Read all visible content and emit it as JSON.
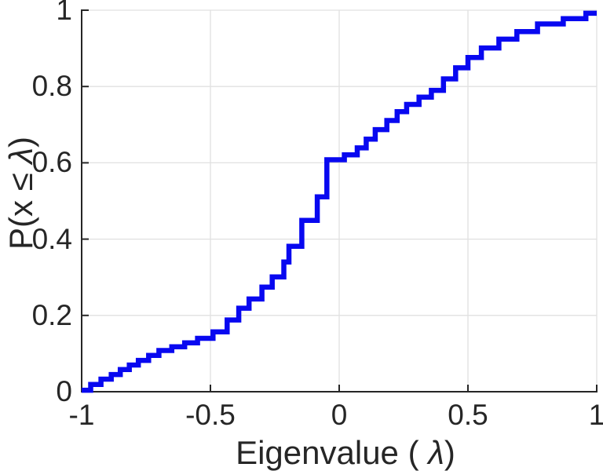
{
  "figure": {
    "background": "#ffffff",
    "text_color": "#262626"
  },
  "chart_data": {
    "type": "line",
    "subtype": "stairs-empirical-cdf",
    "title": "",
    "xlabel": "Eigenvalue ( λ)",
    "ylabel": "P(x ≤ λ)",
    "xlabel_parts": {
      "prefix": "Eigenvalue (",
      "lambda": " λ",
      "suffix": ")"
    },
    "ylabel_parts": {
      "prefix": "P(x ",
      "leq": "≤",
      "lambda": " λ",
      "suffix": ")"
    },
    "xlim": [
      -1,
      1
    ],
    "ylim": [
      0,
      1
    ],
    "grid": true,
    "legend_position": "none",
    "xticks": {
      "values": [
        -1,
        -0.5,
        0,
        0.5,
        1
      ],
      "labels": [
        "-1",
        "-0.5",
        "0",
        "0.5",
        "1"
      ]
    },
    "yticks": {
      "values": [
        0,
        0.2,
        0.4,
        0.6,
        0.8,
        1
      ],
      "labels": [
        "0",
        "0.2",
        "0.4",
        "0.6",
        "0.8",
        "1"
      ]
    },
    "series": [
      {
        "name": "eigenvalue-cdf-staircase",
        "color": "#0808f0",
        "line_width": 6.5,
        "step_start": [
          -1.0,
          0.004
        ],
        "steps": [
          [
            -0.965,
            0.019
          ],
          [
            -0.925,
            0.033
          ],
          [
            -0.885,
            0.045
          ],
          [
            -0.85,
            0.058
          ],
          [
            -0.815,
            0.07
          ],
          [
            -0.78,
            0.082
          ],
          [
            -0.74,
            0.095
          ],
          [
            -0.7,
            0.108
          ],
          [
            -0.65,
            0.118
          ],
          [
            -0.6,
            0.128
          ],
          [
            -0.55,
            0.14
          ],
          [
            -0.49,
            0.157
          ],
          [
            -0.435,
            0.188
          ],
          [
            -0.39,
            0.219
          ],
          [
            -0.35,
            0.243
          ],
          [
            -0.3,
            0.274
          ],
          [
            -0.26,
            0.301
          ],
          [
            -0.215,
            0.34
          ],
          [
            -0.195,
            0.381
          ],
          [
            -0.145,
            0.449
          ],
          [
            -0.085,
            0.511
          ],
          [
            -0.048,
            0.608
          ],
          [
            0.02,
            0.621
          ],
          [
            0.07,
            0.639
          ],
          [
            0.105,
            0.662
          ],
          [
            0.14,
            0.687
          ],
          [
            0.185,
            0.711
          ],
          [
            0.225,
            0.734
          ],
          [
            0.262,
            0.753
          ],
          [
            0.31,
            0.772
          ],
          [
            0.358,
            0.79
          ],
          [
            0.405,
            0.82
          ],
          [
            0.452,
            0.849
          ],
          [
            0.5,
            0.876
          ],
          [
            0.552,
            0.901
          ],
          [
            0.62,
            0.924
          ],
          [
            0.69,
            0.944
          ],
          [
            0.77,
            0.964
          ],
          [
            0.87,
            0.978
          ],
          [
            0.958,
            0.992
          ]
        ],
        "end_x": 1.0
      }
    ],
    "style": {
      "axis_color": "#262626",
      "grid_color": "#e0e0e0",
      "spine_width": 2,
      "grid_width": 1.3,
      "tick_length": 9
    }
  }
}
